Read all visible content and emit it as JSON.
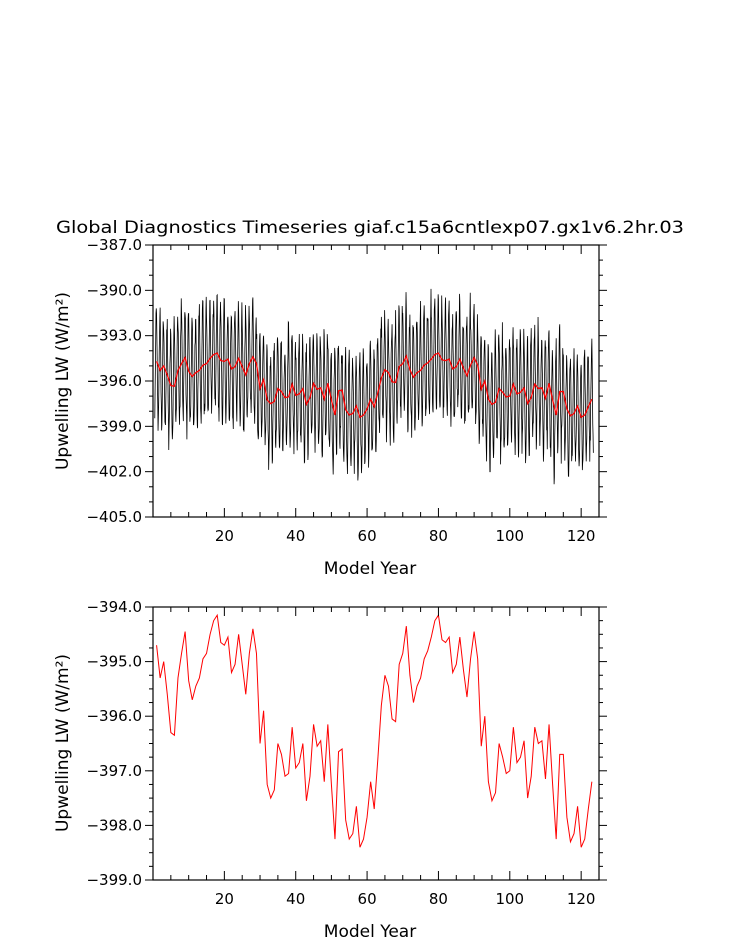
{
  "chart_data": [
    {
      "type": "line",
      "title": "Global Diagnostics Timeseries giaf.c15a6cntlexp07.gx1v6.2hr.03",
      "xlabel": "Model Year",
      "ylabel": "Upwelling LW (W/m²)",
      "xlim": [
        0,
        125
      ],
      "ylim": [
        -405.0,
        -387.0
      ],
      "xticks": [
        20,
        40,
        60,
        80,
        100,
        120
      ],
      "yticks": [
        -405.0,
        -402.0,
        -399.0,
        -396.0,
        -393.0,
        -390.0,
        -387.0
      ],
      "ytick_labels": [
        "−405.0",
        "−402.0",
        "−399.0",
        "−396.0",
        "−393.0",
        "−390.0",
        "−387.0"
      ],
      "series": [
        {
          "color": "#000000",
          "description_visible": "monthly values: seasonal cycle of about ±3.5 W/m² around the annual mean, one sample per month for years 1–124",
          "seasonal_amplitude": 3.5
        },
        {
          "color": "#ff0000",
          "x_start": 1,
          "values": [
            -394.7,
            -395.3,
            -395.0,
            -395.6,
            -396.3,
            -396.35,
            -395.3,
            -394.85,
            -394.45,
            -395.35,
            -395.7,
            -395.45,
            -395.3,
            -394.95,
            -394.85,
            -394.5,
            -394.25,
            -394.15,
            -394.65,
            -394.7,
            -394.55,
            -395.2,
            -395.05,
            -394.5,
            -395.05,
            -395.6,
            -394.85,
            -394.4,
            -394.85,
            -396.5,
            -395.9,
            -397.25,
            -397.5,
            -397.35,
            -396.5,
            -396.7,
            -397.1,
            -397.05,
            -396.2,
            -396.95,
            -396.85,
            -396.5,
            -397.55,
            -397.1,
            -396.15,
            -396.55,
            -396.45,
            -397.2,
            -396.15,
            -397.25,
            -398.25,
            -396.65,
            -396.6,
            -397.9,
            -398.25,
            -398.15,
            -397.65,
            -398.4,
            -398.25,
            -397.85,
            -397.2,
            -397.7,
            -396.8,
            -395.8,
            -395.25,
            -395.45,
            -396.05,
            -396.1,
            -395.05,
            -394.85,
            -394.35,
            -395.25,
            -395.75,
            -395.45,
            -395.3,
            -394.95,
            -394.8,
            -394.55,
            -394.25,
            -394.15,
            -394.6,
            -394.65,
            -394.55,
            -395.2,
            -395.05,
            -394.55,
            -395.15,
            -395.65,
            -394.95,
            -394.45,
            -394.95,
            -396.55,
            -396.0,
            -397.2,
            -397.55,
            -397.4,
            -396.5,
            -396.75,
            -397.05,
            -397.0,
            -396.2,
            -396.85,
            -396.75,
            -396.45,
            -397.5,
            -397.1,
            -396.2,
            -396.5,
            -396.45,
            -397.15,
            -396.15,
            -397.25,
            -398.25,
            -396.7,
            -396.7,
            -397.85,
            -398.3,
            -398.15,
            -397.65,
            -398.4,
            -398.25,
            -397.7,
            -397.2
          ]
        }
      ]
    },
    {
      "type": "line",
      "title": "",
      "xlabel": "Model Year",
      "ylabel": "Upwelling LW (W/m²)",
      "xlim": [
        0,
        125
      ],
      "ylim": [
        -399.0,
        -394.0
      ],
      "xticks": [
        20,
        40,
        60,
        80,
        100,
        120
      ],
      "yticks": [
        -399.0,
        -398.0,
        -397.0,
        -396.0,
        -395.0,
        -394.0
      ],
      "ytick_labels": [
        "−399.0",
        "−398.0",
        "−397.0",
        "−396.0",
        "−395.0",
        "−394.0"
      ],
      "series": [
        {
          "color": "#ff0000",
          "same_as_panel1_red": true
        }
      ]
    }
  ]
}
